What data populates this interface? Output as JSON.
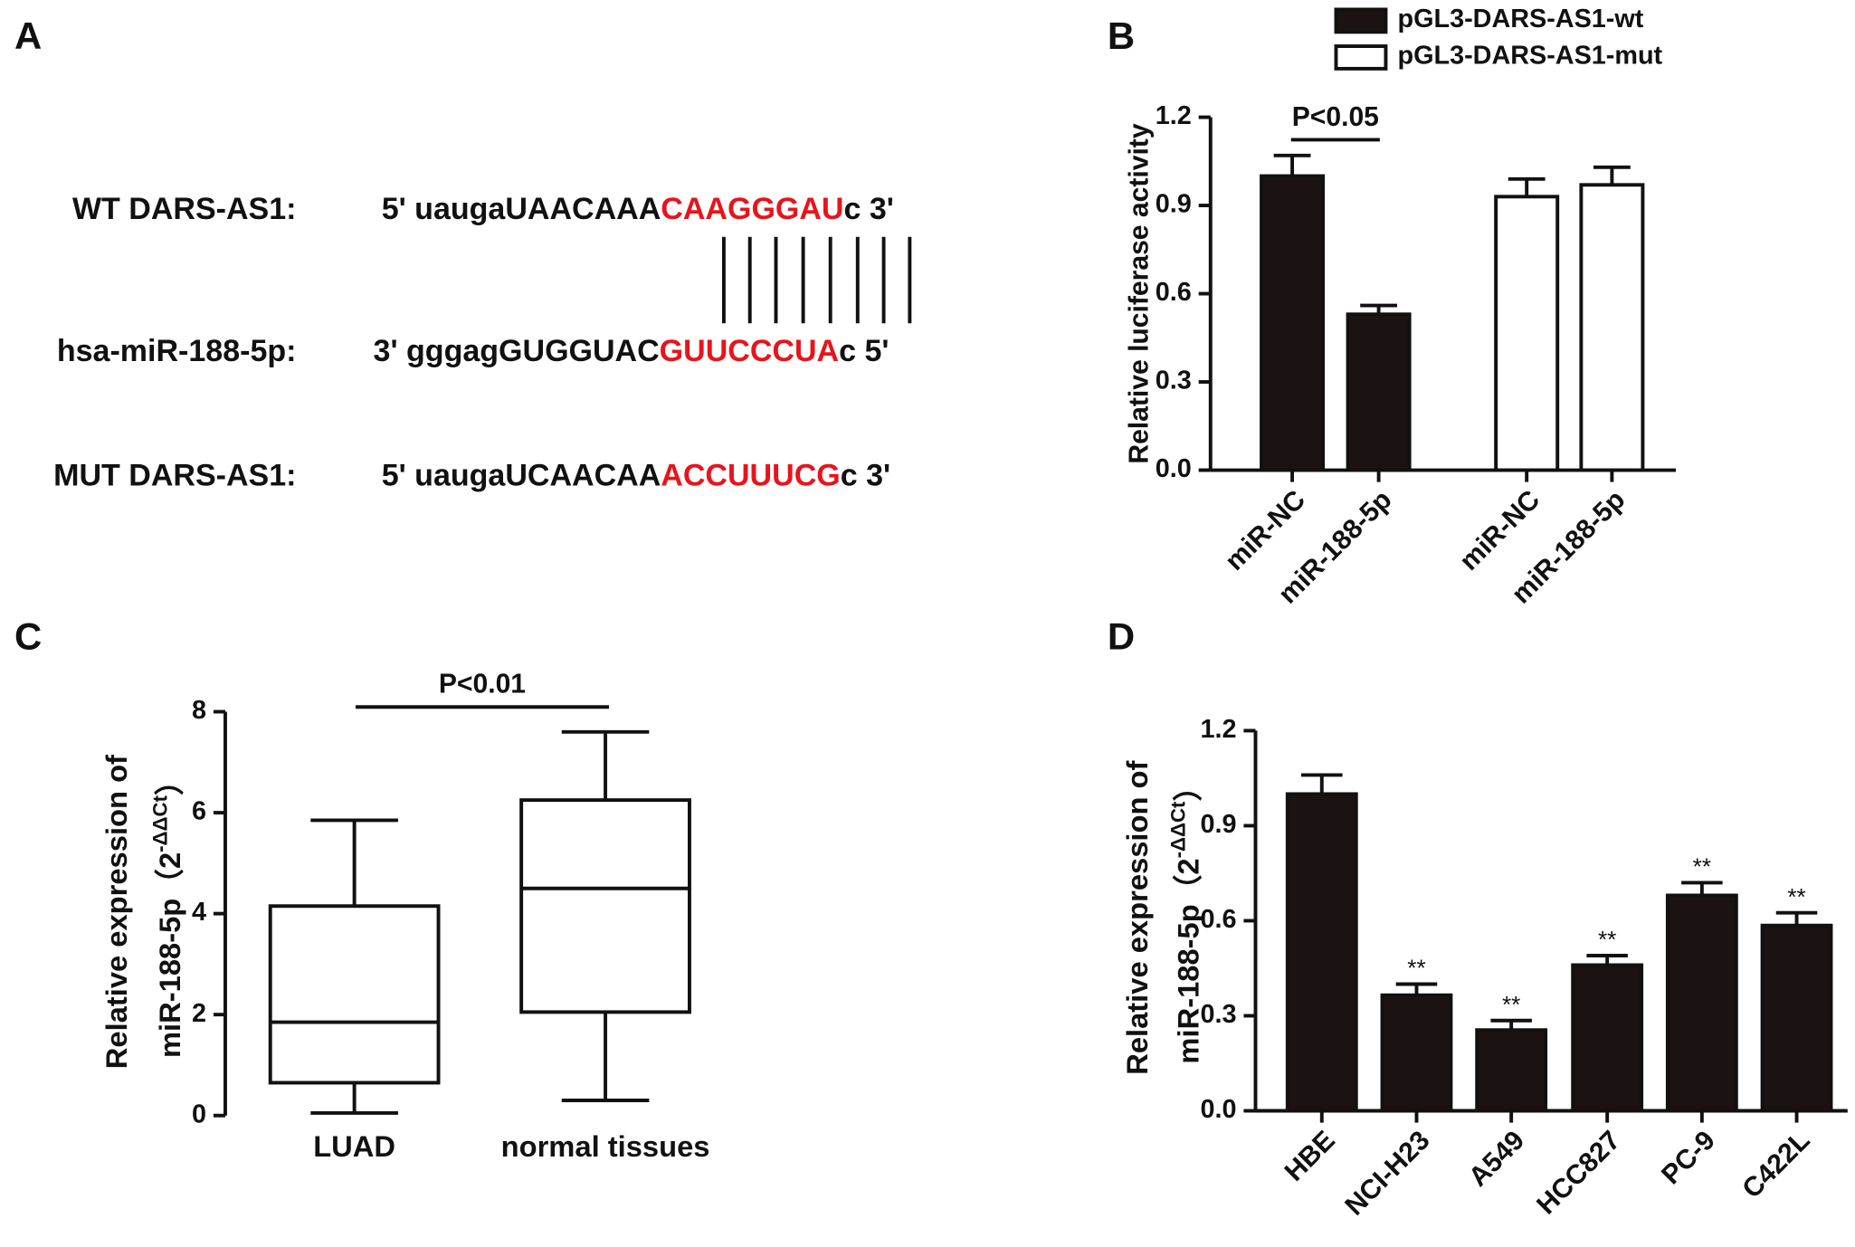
{
  "panel_labels": [
    "A",
    "B",
    "C",
    "D"
  ],
  "sequences": {
    "rows": [
      {
        "label": "WT DARS-AS1:",
        "prefix": "5' uaugaUAACAAA",
        "site": "CAAGGGAU",
        "suffix": "c 3'"
      },
      {
        "label": "hsa-miR-188-5p:",
        "prefix": "3' gggagGUGGUAC",
        "site": "GUUCCCUA",
        "suffix": "c 5'"
      },
      {
        "label": "MUT DARS-AS1:",
        "prefix": "5' uaugaUCAACAA",
        "site": "ACCUUUCG",
        "suffix": "c 3'"
      }
    ]
  },
  "chart_data": [
    {
      "type": "bar",
      "ylabel": "Relative luciferase activity",
      "categories": [
        "miR-NC",
        "miR-188-5p",
        "miR-NC",
        "miR-188-5p"
      ],
      "series": [
        {
          "name": "pGL3-DARS-AS1-wt",
          "color": "#1a1311",
          "values": [
            1.0,
            0.53,
            null,
            null
          ],
          "errors": [
            0.07,
            0.03,
            null,
            null
          ]
        },
        {
          "name": "pGL3-DARS-AS1-mut",
          "color": "#ffffff",
          "values": [
            null,
            null,
            0.93,
            0.97
          ],
          "errors": [
            null,
            null,
            0.06,
            0.06
          ]
        }
      ],
      "ylim": [
        0,
        1.2
      ],
      "yticks": [
        {
          "value": 0,
          "label": "0.0"
        },
        {
          "value": 0.3,
          "label": "0.3"
        },
        {
          "value": 0.6,
          "label": "0.6"
        },
        {
          "value": 0.9,
          "label": "0.9"
        },
        {
          "value": 1.2,
          "label": "1.2"
        }
      ],
      "annotation": "P<0.05",
      "legend": "top"
    },
    {
      "type": "box",
      "ylabel": {
        "line1": "Relative expression of",
        "line2": "miR-188-5p（2",
        "sup": "-ΔΔCt",
        "close": "）"
      },
      "categories": [
        "LUAD",
        "normal tissues"
      ],
      "boxes": [
        {
          "min": 0.05,
          "q1": 0.65,
          "median": 1.85,
          "q3": 4.15,
          "max": 5.85
        },
        {
          "min": 0.3,
          "q1": 2.05,
          "median": 4.5,
          "q3": 6.25,
          "max": 7.6
        }
      ],
      "ylim": [
        0,
        8
      ],
      "yticks": [
        0,
        2,
        4,
        6,
        8
      ],
      "annotation": "P<0.01"
    },
    {
      "type": "bar",
      "ylabel": {
        "line1": "Relative expression of",
        "line2": "miR-188-5p（2",
        "sup": "-ΔΔCt",
        "close": "）"
      },
      "categories": [
        "HBE",
        "NCI-H23",
        "A549",
        "HCC827",
        "PC-9",
        "C422L"
      ],
      "series": [
        {
          "color": "#1a1311",
          "values": [
            1.0,
            0.365,
            0.255,
            0.46,
            0.68,
            0.585
          ],
          "errors": [
            0.06,
            0.035,
            0.03,
            0.03,
            0.04,
            0.04
          ],
          "significance": [
            null,
            "**",
            "**",
            "**",
            "**",
            "**"
          ]
        }
      ],
      "ylim": [
        0,
        1.2
      ],
      "yticks": [
        {
          "value": 0,
          "label": "0.0"
        },
        {
          "value": 0.3,
          "label": "0.3"
        },
        {
          "value": 0.6,
          "label": "0.6"
        },
        {
          "value": 0.9,
          "label": "0.9"
        },
        {
          "value": 1.2,
          "label": "1.2"
        }
      ]
    }
  ]
}
